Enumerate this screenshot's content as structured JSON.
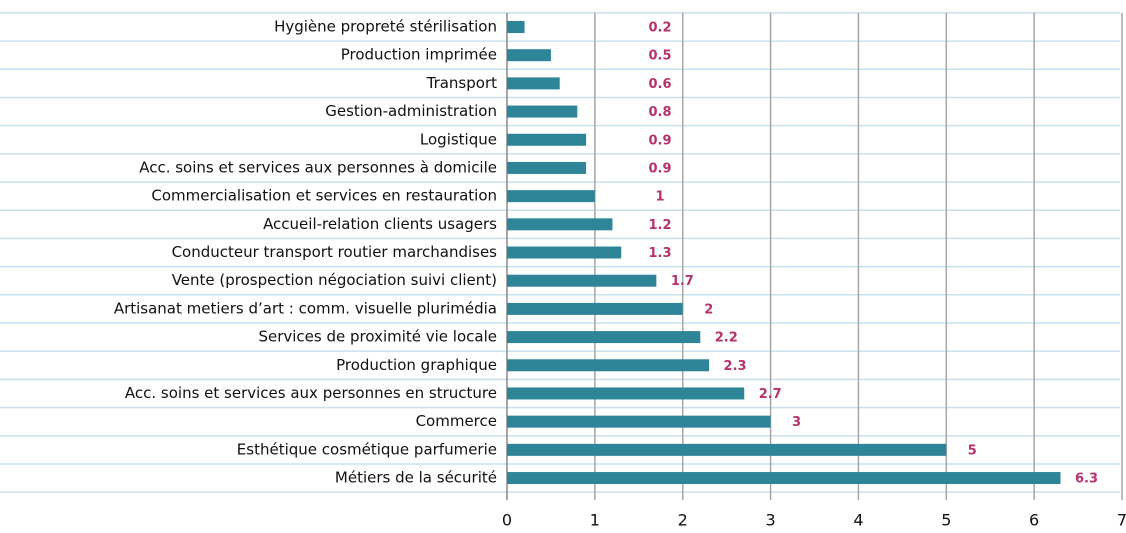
{
  "chart_data": {
    "type": "barh",
    "categories": [
      "Hygiène propreté stérilisation",
      "Production imprimée",
      "Transport",
      "Gestion-administration",
      "Logistique",
      "Acc. soins et services aux personnes à domicile",
      "Commercialisation et services en restauration",
      "Accueil-relation clients usagers",
      "Conducteur transport routier marchandises",
      "Vente (prospection négociation suivi client)",
      "Artisanat metiers d’art : comm. visuelle plurimédia",
      "Services de proximité vie locale",
      "Production graphique",
      "Acc. soins et services aux personnes en structure",
      "Commerce",
      "Esthétique cosmétique parfumerie",
      "Métiers de la sécurité"
    ],
    "values": [
      0.2,
      0.5,
      0.6,
      0.8,
      0.9,
      0.9,
      1,
      1.2,
      1.3,
      1.7,
      2,
      2.2,
      2.3,
      2.7,
      3,
      5,
      6.3
    ],
    "color": "#2f8598",
    "label_color": "#b5336c",
    "xlim": [
      0,
      7
    ],
    "xticks": [
      0,
      1,
      2,
      3,
      4,
      5,
      6,
      7
    ],
    "grid": true
  }
}
